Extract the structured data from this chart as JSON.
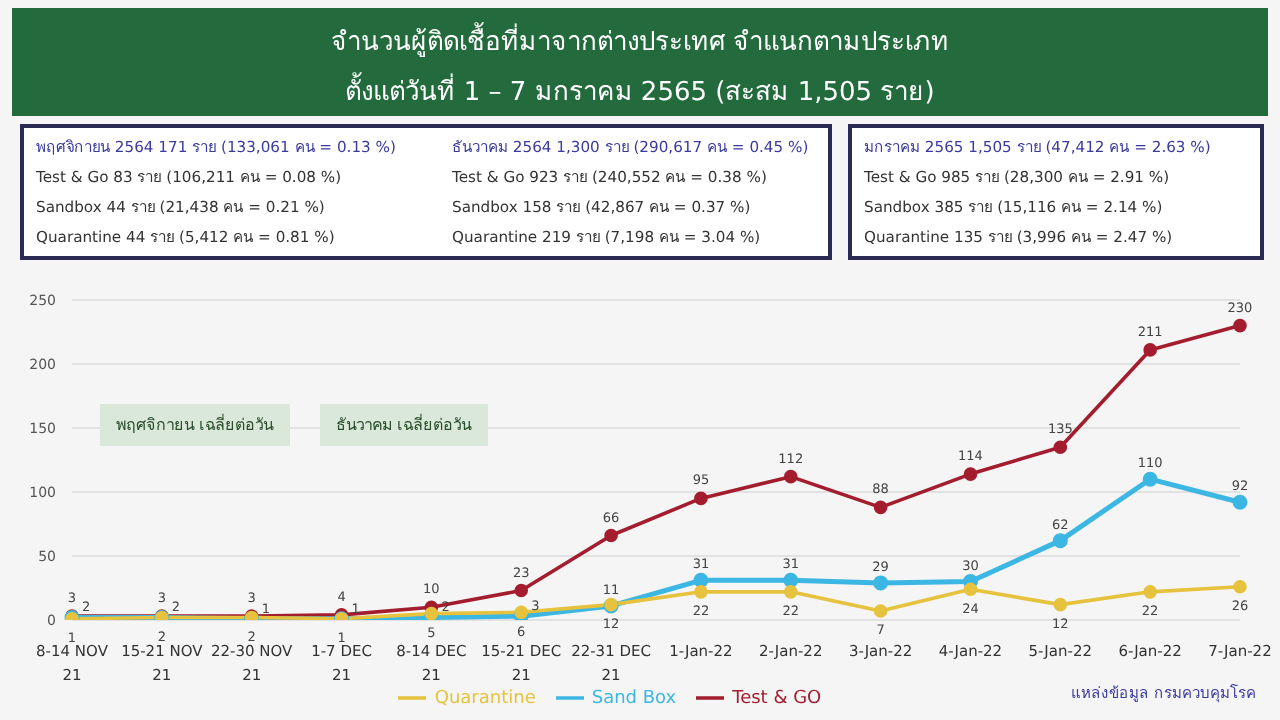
{
  "chart_data": {
    "type": "line",
    "title": "จำนวนผู้ติดเชื้อที่มาจากต่างประเทศ จำแนกตามประเภท",
    "subtitle": "ตั้งแต่วันที่  1 – 7  มกราคม  2565 (สะสม 1,505 ราย)",
    "categories": [
      "8-14 NOV 21",
      "15-21 NOV 21",
      "22-30 NOV 21",
      "1-7 DEC 21",
      "8-14 DEC 21",
      "15-21 DEC 21",
      "22-31 DEC 21",
      "1-Jan-22",
      "2-Jan-22",
      "3-Jan-22",
      "4-Jan-22",
      "5-Jan-22",
      "6-Jan-22",
      "7-Jan-22"
    ],
    "series": [
      {
        "name": "Test & GO",
        "color": "#a31d2e",
        "values": [
          3,
          3,
          3,
          4,
          10,
          23,
          66,
          95,
          112,
          88,
          114,
          135,
          211,
          230
        ]
      },
      {
        "name": "Sand Box",
        "color": "#3cb6e3",
        "values": [
          2,
          2,
          1,
          1,
          2,
          3,
          11,
          31,
          31,
          29,
          30,
          62,
          110,
          92
        ]
      },
      {
        "name": "Quarantine",
        "color": "#e6c23e",
        "values": [
          1,
          2,
          2,
          1,
          5,
          6,
          12,
          22,
          22,
          7,
          24,
          12,
          22,
          26
        ]
      }
    ],
    "ylim": [
      0,
      250
    ],
    "yticks": [
      0,
      50,
      100,
      150,
      200,
      250
    ],
    "grid": "y",
    "marker": "circle",
    "legend": "bottom",
    "data_labels": true,
    "annotations": [
      "พฤศจิกายน 2564  171 ราย (133,061 คน = 0.13 %)",
      "Test & Go  83 ราย (106,211 คน = 0.08 %)",
      "Sandbox  44 ราย (21,438 คน = 0.21 %)",
      "Quarantine  44 ราย (5,412 คน = 0.81 %)",
      "ธันวาคม 2564  1,300 ราย (290,617 คน = 0.45 %)",
      "Test & Go  923 ราย (240,552 คน = 0.38 %)",
      "Sandbox  158 ราย (42,867 คน = 0.37 %)",
      "Quarantine  219 ราย (7,198 คน = 3.04 %)",
      "มกราคม 2565 1,505 ราย (47,412 คน = 2.63 %)",
      "Test & Go  985 ราย (28,300 คน = 2.91 %)",
      "Sandbox  385 ราย (15,116 คน = 2.14 %)",
      "Quarantine  135 ราย (3,996 คน = 2.47 %)",
      "พฤศจิกายน เฉลี่ยต่อวัน",
      "ธันวาคม เฉลี่ยต่อวัน",
      "แหล่งข้อมูล กรมควบคุมโรค"
    ]
  }
}
